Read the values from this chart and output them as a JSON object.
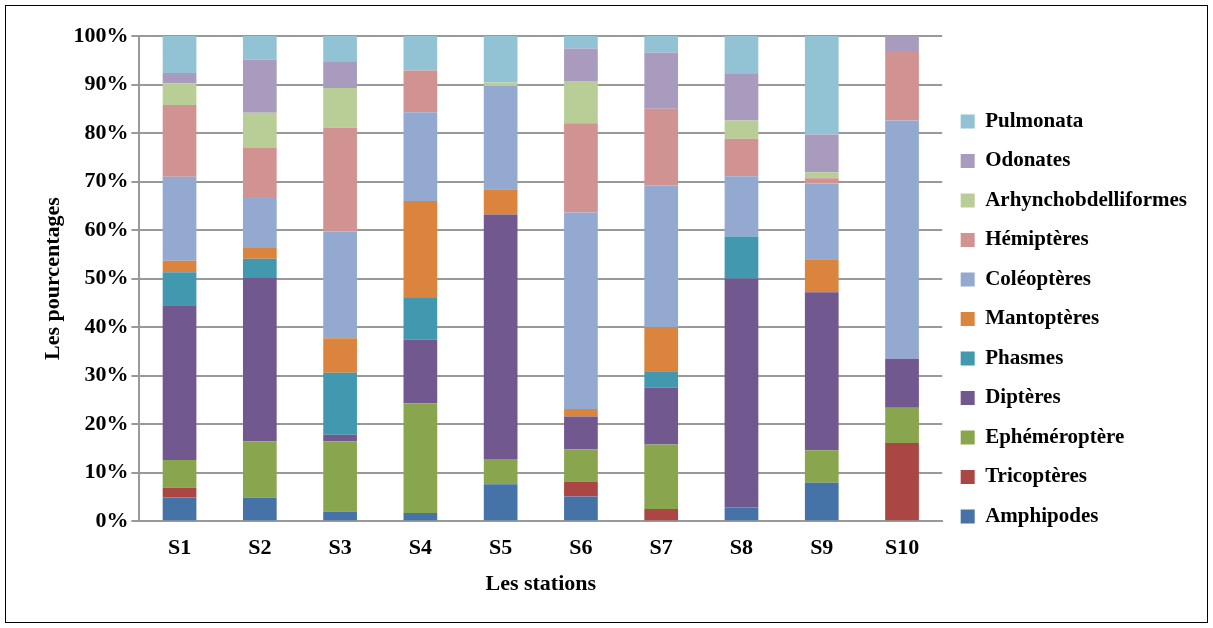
{
  "chart_data": {
    "type": "bar",
    "stacked": true,
    "xlabel": "Les stations",
    "ylabel": "Les pourcentages",
    "categories": [
      "S1",
      "S2",
      "S3",
      "S4",
      "S5",
      "S6",
      "S7",
      "S8",
      "S9",
      "S10"
    ],
    "ylim": [
      0,
      100
    ],
    "yticks": [
      {
        "value": 0,
        "label": "0%"
      },
      {
        "value": 10,
        "label": "10%"
      },
      {
        "value": 20,
        "label": "20%"
      },
      {
        "value": 30,
        "label": "30%"
      },
      {
        "value": 40,
        "label": "40%"
      },
      {
        "value": 50,
        "label": "50%"
      },
      {
        "value": 60,
        "label": "60%"
      },
      {
        "value": 70,
        "label": "70%"
      },
      {
        "value": 80,
        "label": "80%"
      },
      {
        "value": 90,
        "label": "90%"
      },
      {
        "value": 100,
        "label": "100%"
      }
    ],
    "grid": "y",
    "legend": "right",
    "series": [
      {
        "name": "Amphipodes",
        "color": "#4572a7",
        "values": [
          4.9,
          4.9,
          2.0,
          1.7,
          7.6,
          5.1,
          0,
          2.8,
          7.9,
          0
        ]
      },
      {
        "name": "Tricoptères",
        "color": "#aa4643",
        "values": [
          2.0,
          0,
          0,
          0,
          0,
          3.1,
          2.5,
          0,
          0,
          16.1
        ]
      },
      {
        "name": "Ephéméroptère",
        "color": "#89a54e",
        "values": [
          5.7,
          11.6,
          14.5,
          22.6,
          5.2,
          6.6,
          13.3,
          0,
          6.7,
          7.3
        ]
      },
      {
        "name": "Diptères",
        "color": "#71588f",
        "values": [
          31.9,
          33.6,
          1.3,
          13.1,
          50.4,
          6.8,
          11.7,
          47.2,
          32.6,
          10.1
        ]
      },
      {
        "name": "Phasmes",
        "color": "#4198af",
        "values": [
          6.8,
          4.0,
          12.8,
          8.6,
          0,
          0,
          3.4,
          8.7,
          0,
          0
        ]
      },
      {
        "name": "Mantoptères",
        "color": "#db843d",
        "values": [
          2.4,
          2.2,
          7.1,
          20.0,
          5.2,
          1.5,
          9.1,
          0,
          6.8,
          0
        ]
      },
      {
        "name": "Coléoptères",
        "color": "#93a9cf",
        "values": [
          17.3,
          10.5,
          22.0,
          18.3,
          21.3,
          40.5,
          29.2,
          12.4,
          15.6,
          49.1
        ]
      },
      {
        "name": "Hémiptères",
        "color": "#d19392",
        "values": [
          14.8,
          10.1,
          21.4,
          8.6,
          0,
          18.4,
          15.8,
          7.7,
          1.1,
          14.3
        ]
      },
      {
        "name": "Arhynchobdelliformes",
        "color": "#b9cd96",
        "values": [
          4.4,
          7.3,
          8.2,
          0,
          0.7,
          8.7,
          0,
          3.8,
          1.2,
          0
        ]
      },
      {
        "name": "Odonates",
        "color": "#a99bbd",
        "values": [
          2.2,
          10.9,
          5.5,
          0,
          0,
          6.7,
          11.6,
          9.7,
          7.8,
          3.1
        ]
      },
      {
        "name": "Pulmonata",
        "color": "#92c3d4",
        "values": [
          7.6,
          4.9,
          5.2,
          7.1,
          9.6,
          2.6,
          3.4,
          7.7,
          20.3,
          0
        ]
      }
    ]
  }
}
